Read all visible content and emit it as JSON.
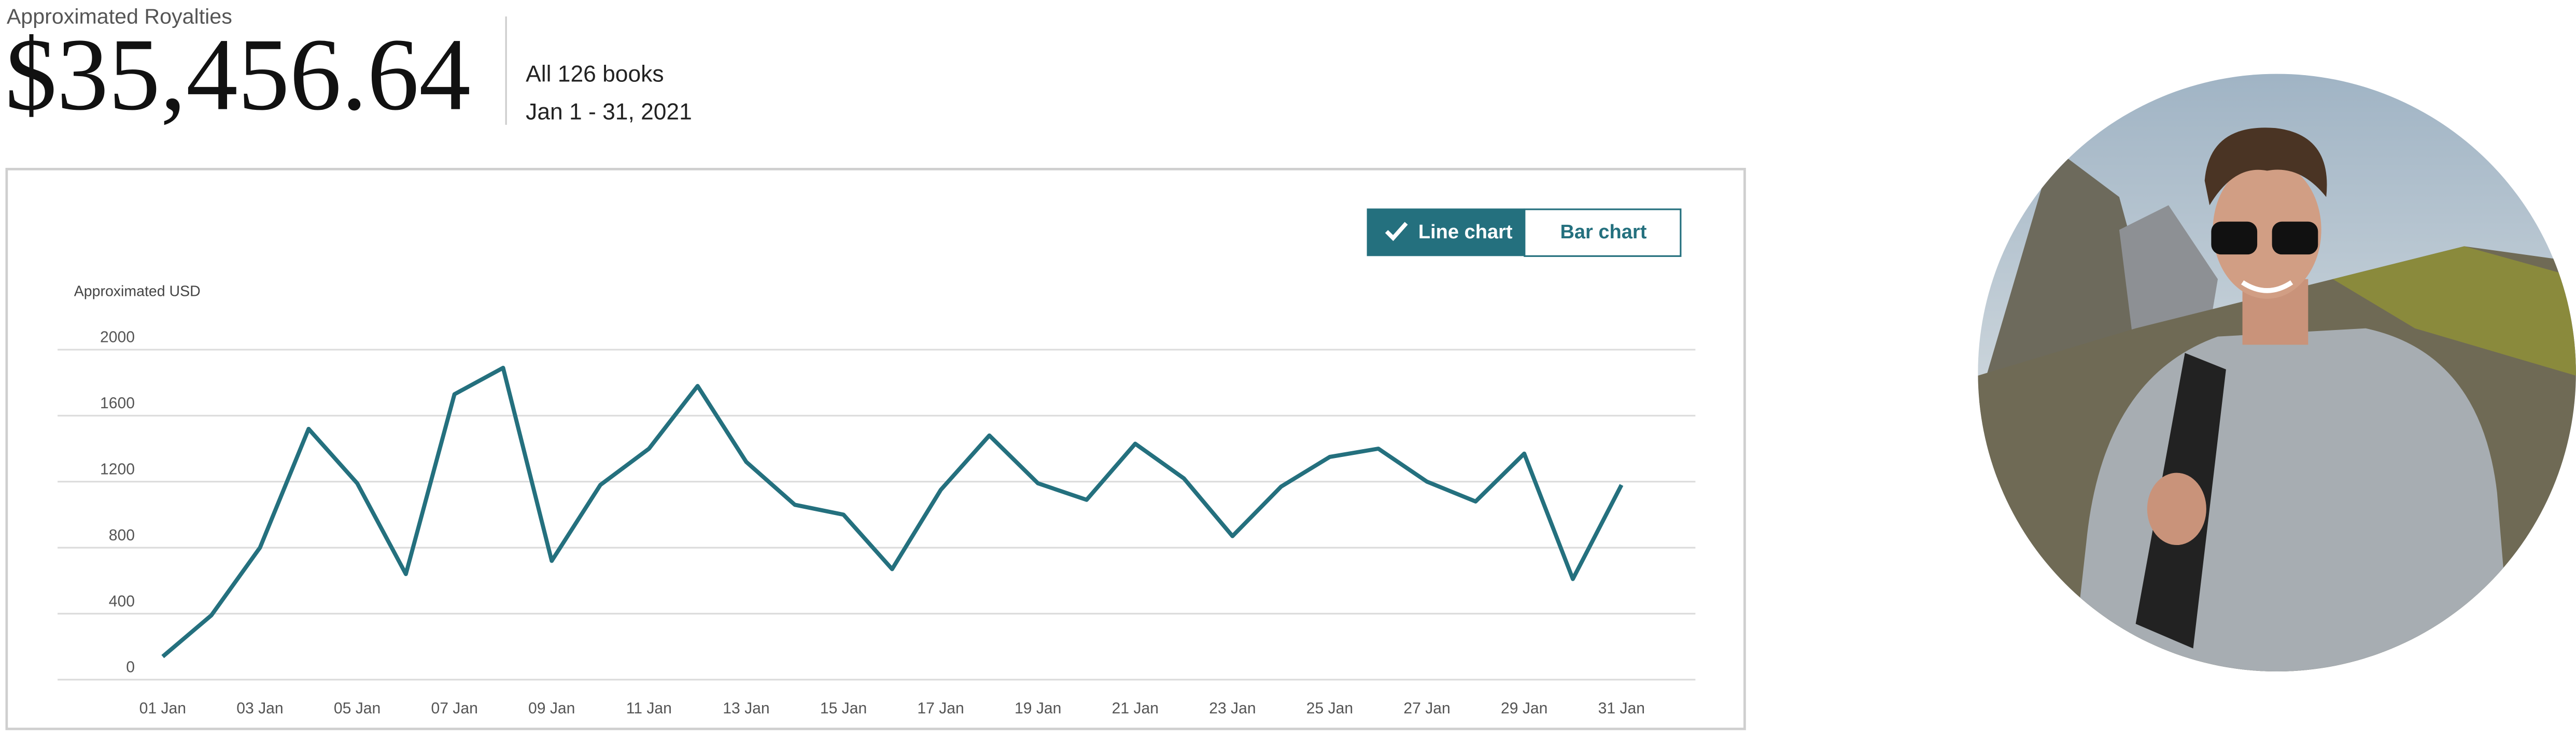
{
  "header": {
    "label": "Approximated Royalties",
    "amount": "$35,456.64",
    "books": "All 126 books",
    "period": "Jan 1 - 31, 2021"
  },
  "toggle": {
    "line": "Line chart",
    "bar": "Bar chart"
  },
  "chart_data": {
    "type": "line",
    "y_label": "Approximated USD",
    "categories": [
      "01 Jan",
      null,
      "03 Jan",
      null,
      "05 Jan",
      null,
      "07 Jan",
      null,
      "09 Jan",
      null,
      "11 Jan",
      null,
      "13 Jan",
      null,
      "15 Jan",
      null,
      "17 Jan",
      null,
      "19 Jan",
      null,
      "21 Jan",
      null,
      "23 Jan",
      null,
      "25 Jan",
      null,
      "27 Jan",
      null,
      "29 Jan",
      null,
      "31 Jan"
    ],
    "series": [
      {
        "name": "Approximated USD",
        "color": "#24707e",
        "values": [
          140,
          390,
          800,
          1520,
          1190,
          640,
          1730,
          1890,
          720,
          1180,
          1400,
          1780,
          1320,
          1060,
          1000,
          670,
          1150,
          1480,
          1190,
          1090,
          1430,
          1220,
          870,
          1170,
          1350,
          1400,
          1200,
          1080,
          1370,
          610,
          1180
        ]
      }
    ],
    "ylim": [
      0,
      2000
    ],
    "yticks": [
      0,
      400,
      800,
      1200,
      1600,
      2000
    ],
    "grid": true
  }
}
